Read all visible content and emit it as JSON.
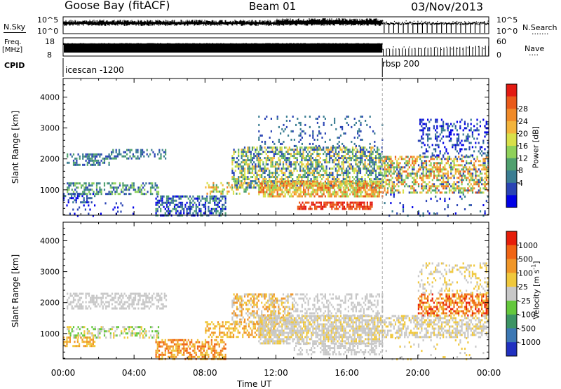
{
  "header": {
    "station": "Goose Bay (fitACF)",
    "beam": "Beam 01",
    "date": "03/Nov/2013"
  },
  "top_panel": {
    "left_label": "N.Sky",
    "left_ticks": [
      "10^5",
      "10^0"
    ],
    "right_ticks": [
      "10^5",
      "10^0"
    ],
    "right_label": "N.Search",
    "right_label_dots": "......."
  },
  "freq_panel": {
    "label_line1": "Freq.",
    "label_line2": "[MHz]",
    "left_ticks": [
      "18",
      "8"
    ],
    "right_ticks": [
      "60",
      "0"
    ],
    "right_label": "Nave",
    "right_label_dots": "...."
  },
  "cpid_panel": {
    "label": "CPID",
    "modes": [
      {
        "name": "icescan -1200",
        "start_hour": 0
      },
      {
        "name": "rbsp 200",
        "start_hour": 18
      }
    ]
  },
  "chart_data": [
    {
      "type": "heatmap",
      "parameter": "Power",
      "ylabel": "Slant Range [km]",
      "xlabel": "Time UT",
      "xlim_hours": [
        0,
        24
      ],
      "ylim": [
        180,
        4600
      ],
      "yticks": [
        1000,
        2000,
        3000,
        4000
      ],
      "xtick_labels": [
        "00:00",
        "04:00",
        "08:00",
        "12:00",
        "16:00",
        "20:00",
        "00:00"
      ],
      "colorbar": {
        "label": "Power [dB]",
        "ticks": [
          "4",
          "8",
          "12",
          "16",
          "20",
          "24",
          "28"
        ],
        "colors": [
          "#0000e6",
          "#2a44b4",
          "#3a7d92",
          "#4fa06e",
          "#8fd15a",
          "#d8e04a",
          "#f3b43c",
          "#f08a28",
          "#ea5a1a",
          "#e31a12"
        ]
      },
      "regions": [
        {
          "t": [
            0.2,
            2.6
          ],
          "r": [
            1780,
            2180
          ],
          "c": [
            1,
            2,
            3
          ],
          "d": 0.5
        },
        {
          "t": [
            2.6,
            5.8
          ],
          "r": [
            1980,
            2320
          ],
          "c": [
            1,
            2,
            3
          ],
          "d": 0.45
        },
        {
          "t": [
            0.2,
            5.4
          ],
          "r": [
            880,
            1240
          ],
          "c": [
            1,
            2,
            3,
            4
          ],
          "d": 0.5
        },
        {
          "t": [
            0.0,
            1.8
          ],
          "r": [
            600,
            900
          ],
          "c": [
            0,
            1,
            2
          ],
          "d": 0.5
        },
        {
          "t": [
            0.0,
            4.0
          ],
          "r": [
            190,
            600
          ],
          "c": [
            0,
            1
          ],
          "d": 0.08
        },
        {
          "t": [
            5.2,
            9.2
          ],
          "r": [
            190,
            820
          ],
          "c": [
            0,
            1,
            2,
            3
          ],
          "d": 0.55
        },
        {
          "t": [
            8.0,
            10.5
          ],
          "r": [
            900,
            1250
          ],
          "c": [
            3,
            4,
            5,
            6,
            7
          ],
          "d": 0.35
        },
        {
          "t": [
            9.5,
            18.0
          ],
          "r": [
            1100,
            2400
          ],
          "c": [
            1,
            2,
            3,
            4,
            5,
            6
          ],
          "d": 0.6
        },
        {
          "t": [
            11.0,
            18.0
          ],
          "r": [
            780,
            1300
          ],
          "c": [
            4,
            5,
            6,
            7,
            8
          ],
          "d": 0.75
        },
        {
          "t": [
            13.2,
            17.4
          ],
          "r": [
            380,
            620
          ],
          "c": [
            8,
            9
          ],
          "d": 0.7
        },
        {
          "t": [
            11.0,
            18.0
          ],
          "r": [
            2400,
            3400
          ],
          "c": [
            1,
            2
          ],
          "d": 0.12
        },
        {
          "t": [
            18.0,
            24.0
          ],
          "r": [
            880,
            2100
          ],
          "c": [
            1,
            3,
            4,
            5,
            6,
            7,
            8
          ],
          "d": 0.55
        },
        {
          "t": [
            20.0,
            24.0
          ],
          "r": [
            2100,
            3300
          ],
          "c": [
            0,
            1,
            2
          ],
          "d": 0.3
        },
        {
          "t": [
            18.0,
            24.0
          ],
          "r": [
            190,
            880
          ],
          "c": [
            0,
            1,
            2
          ],
          "d": 0.06
        }
      ]
    },
    {
      "type": "heatmap",
      "parameter": "Velocity",
      "ylabel": "Slant Range [km]",
      "xlabel": "Time UT",
      "xlim_hours": [
        0,
        24
      ],
      "ylim": [
        180,
        4600
      ],
      "yticks": [
        1000,
        2000,
        3000,
        4000
      ],
      "xtick_labels": [
        "00:00",
        "04:00",
        "08:00",
        "12:00",
        "16:00",
        "20:00",
        "00:00"
      ],
      "colorbar": {
        "label_main": "Velocity [m s",
        "label_sup": "-1",
        "label_end": "]",
        "ticks": [
          "1000",
          "500",
          "100",
          "25",
          "-25",
          "-100",
          "-500",
          "-1000"
        ],
        "colors": [
          "#2030c0",
          "#3c78b4",
          "#3c9464",
          "#64c83c",
          "#c8c8c8",
          "#f0c83c",
          "#f09628",
          "#f06414",
          "#e61e0a"
        ]
      },
      "regions": [
        {
          "t": [
            0.2,
            5.8
          ],
          "r": [
            1780,
            2320
          ],
          "c": [
            4
          ],
          "d": 0.5
        },
        {
          "t": [
            0.2,
            5.4
          ],
          "r": [
            880,
            1240
          ],
          "c": [
            3,
            4,
            5
          ],
          "d": 0.45
        },
        {
          "t": [
            0.0,
            1.8
          ],
          "r": [
            600,
            900
          ],
          "c": [
            5,
            6
          ],
          "d": 0.45
        },
        {
          "t": [
            5.2,
            9.2
          ],
          "r": [
            190,
            820
          ],
          "c": [
            5,
            6,
            7
          ],
          "d": 0.55
        },
        {
          "t": [
            8.0,
            12.0
          ],
          "r": [
            900,
            1400
          ],
          "c": [
            5,
            6
          ],
          "d": 0.45
        },
        {
          "t": [
            9.5,
            13.0
          ],
          "r": [
            1300,
            2300
          ],
          "c": [
            4,
            5,
            6
          ],
          "d": 0.5
        },
        {
          "t": [
            11.0,
            18.0
          ],
          "r": [
            700,
            1600
          ],
          "c": [
            4,
            4,
            4,
            5
          ],
          "d": 0.75
        },
        {
          "t": [
            13.0,
            18.0
          ],
          "r": [
            1600,
            2300
          ],
          "c": [
            4
          ],
          "d": 0.35
        },
        {
          "t": [
            13.0,
            18.0
          ],
          "r": [
            300,
            700
          ],
          "c": [
            4
          ],
          "d": 0.4
        },
        {
          "t": [
            18.0,
            24.0
          ],
          "r": [
            880,
            1600
          ],
          "c": [
            4,
            4,
            5
          ],
          "d": 0.55
        },
        {
          "t": [
            20.0,
            24.0
          ],
          "r": [
            1600,
            2300
          ],
          "c": [
            5,
            6,
            7,
            8
          ],
          "d": 0.55
        },
        {
          "t": [
            20.0,
            24.0
          ],
          "r": [
            2300,
            3300
          ],
          "c": [
            4,
            5
          ],
          "d": 0.25
        },
        {
          "t": [
            18.0,
            24.0
          ],
          "r": [
            190,
            880
          ],
          "c": [
            4,
            5
          ],
          "d": 0.05
        }
      ]
    }
  ]
}
